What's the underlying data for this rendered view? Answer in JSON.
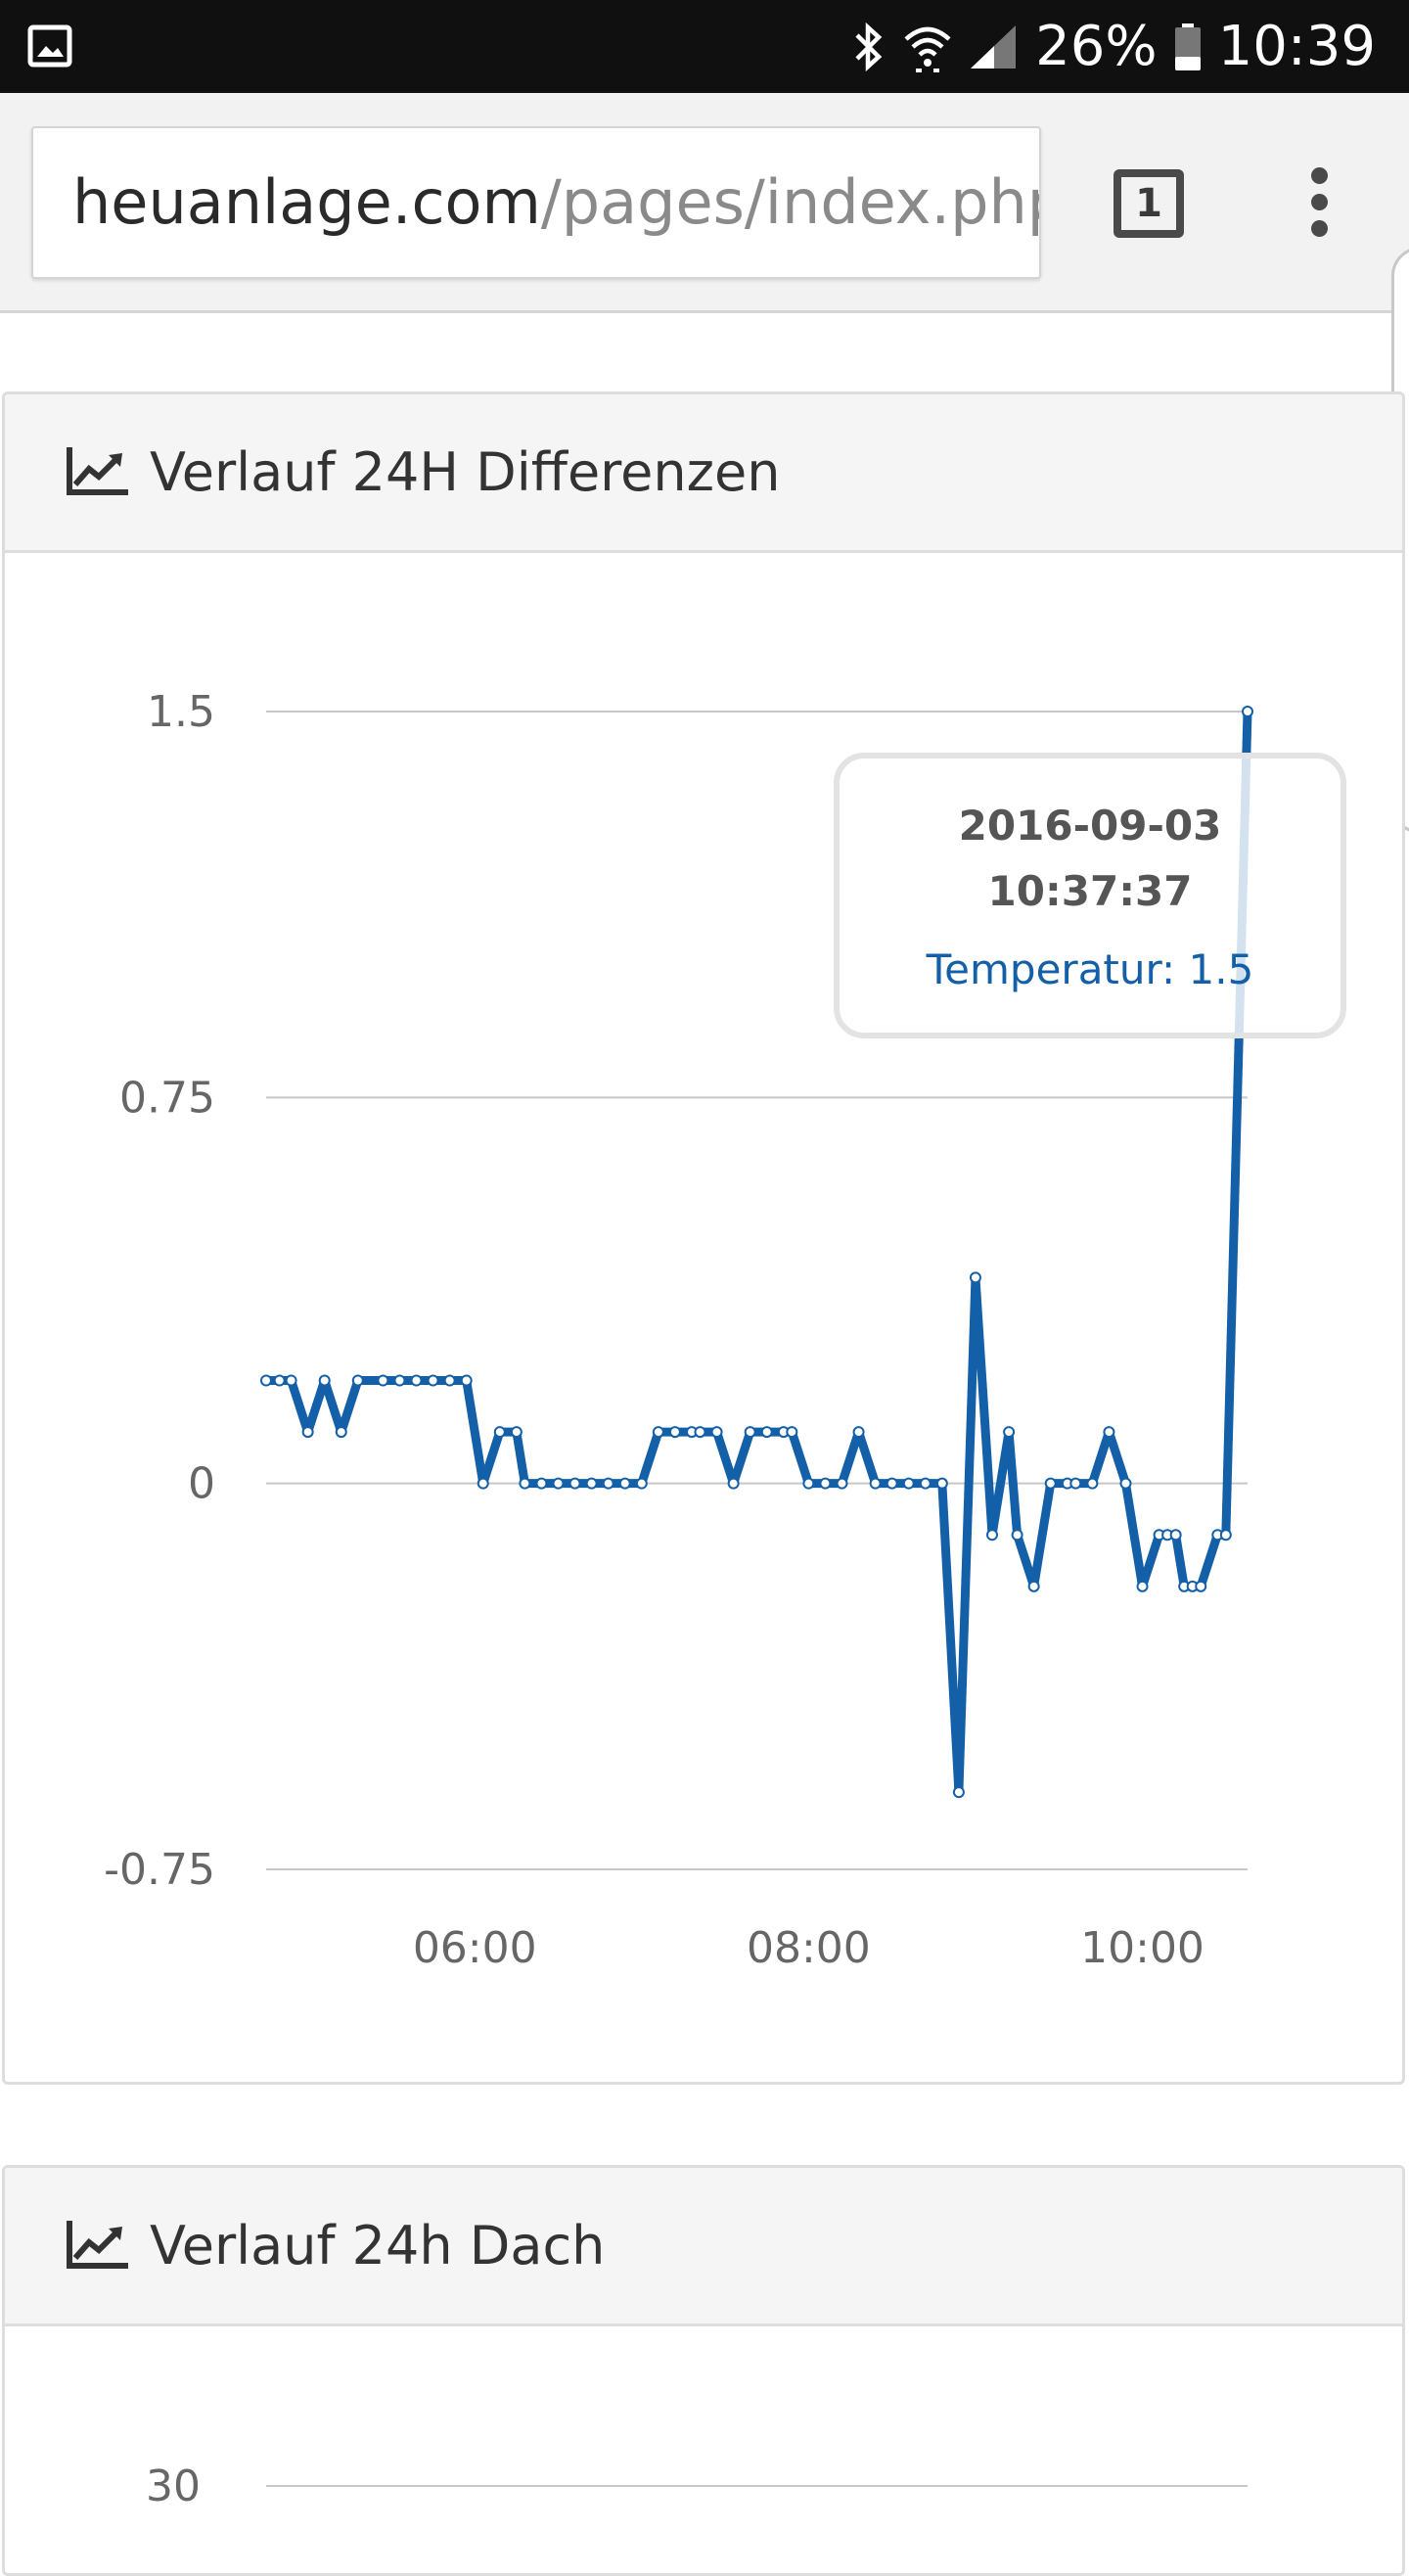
{
  "status_bar": {
    "battery": "26%",
    "time": "10:39",
    "icons": [
      "gallery-icon",
      "bluetooth-icon",
      "wifi-icon",
      "signal-icon",
      "battery-icon"
    ]
  },
  "browser": {
    "url_domain": "heuanlage.com",
    "url_path": "/pages/index.php",
    "tab_count": "1",
    "icons": [
      "tab-switcher-icon",
      "overflow-menu-icon"
    ]
  },
  "panels": [
    {
      "title": "Verlauf 24H Differenzen",
      "icon": "line-chart-icon"
    },
    {
      "title": "Verlauf 24h Dach",
      "icon": "line-chart-icon"
    }
  ],
  "chart_data": [
    {
      "type": "line",
      "title": "",
      "xlabel": "",
      "ylabel": "",
      "y_tick_labels": [
        "1.5",
        "0.75",
        "0",
        "-0.75"
      ],
      "y_ticks": [
        1.5,
        0.75,
        0,
        -0.75
      ],
      "ylim": [
        -0.75,
        1.5
      ],
      "x_tick_labels": [
        "06:00",
        "08:00",
        "10:00"
      ],
      "x_ticks_hours": [
        6,
        8,
        10
      ],
      "xlim_hours": [
        4.75,
        10.63
      ],
      "grid": true,
      "color": "#1460a8",
      "tooltip": {
        "date": "2016-09-03",
        "time": "10:37:37",
        "series_label": "Temperatur: 1.5"
      },
      "series": [
        {
          "name": "Temperatur",
          "x_hours": [
            4.75,
            4.83,
            4.9,
            5.0,
            5.1,
            5.2,
            5.3,
            5.45,
            5.55,
            5.65,
            5.75,
            5.85,
            5.95,
            6.05,
            6.15,
            6.25,
            6.3,
            6.4,
            6.5,
            6.6,
            6.7,
            6.8,
            6.9,
            7.0,
            7.1,
            7.2,
            7.3,
            7.35,
            7.45,
            7.55,
            7.65,
            7.75,
            7.85,
            7.9,
            8.0,
            8.1,
            8.2,
            8.3,
            8.4,
            8.5,
            8.6,
            8.7,
            8.8,
            8.9,
            9.0,
            9.1,
            9.2,
            9.25,
            9.35,
            9.45,
            9.55,
            9.6,
            9.7,
            9.8,
            9.9,
            10.0,
            10.1,
            10.15,
            10.2,
            10.25,
            10.3,
            10.35,
            10.45,
            10.5,
            10.63
          ],
          "values": [
            0.2,
            0.2,
            0.2,
            0.1,
            0.2,
            0.1,
            0.2,
            0.2,
            0.2,
            0.2,
            0.2,
            0.2,
            0.2,
            0.0,
            0.1,
            0.1,
            0.0,
            0.0,
            0.0,
            0.0,
            0.0,
            0.0,
            0.0,
            0.0,
            0.1,
            0.1,
            0.1,
            0.1,
            0.1,
            0.0,
            0.1,
            0.1,
            0.1,
            0.1,
            0.0,
            0.0,
            0.0,
            0.1,
            0.0,
            0.0,
            0.0,
            0.0,
            0.0,
            -0.6,
            0.4,
            -0.1,
            0.1,
            -0.1,
            -0.2,
            0.0,
            0.0,
            0.0,
            0.0,
            0.1,
            0.0,
            -0.2,
            -0.1,
            -0.1,
            -0.1,
            -0.2,
            -0.2,
            -0.2,
            -0.1,
            -0.1,
            1.5
          ]
        }
      ]
    },
    {
      "type": "line",
      "title": "",
      "y_tick_labels": [
        "30"
      ],
      "y_ticks": [
        30
      ],
      "grid": true,
      "series": []
    }
  ]
}
